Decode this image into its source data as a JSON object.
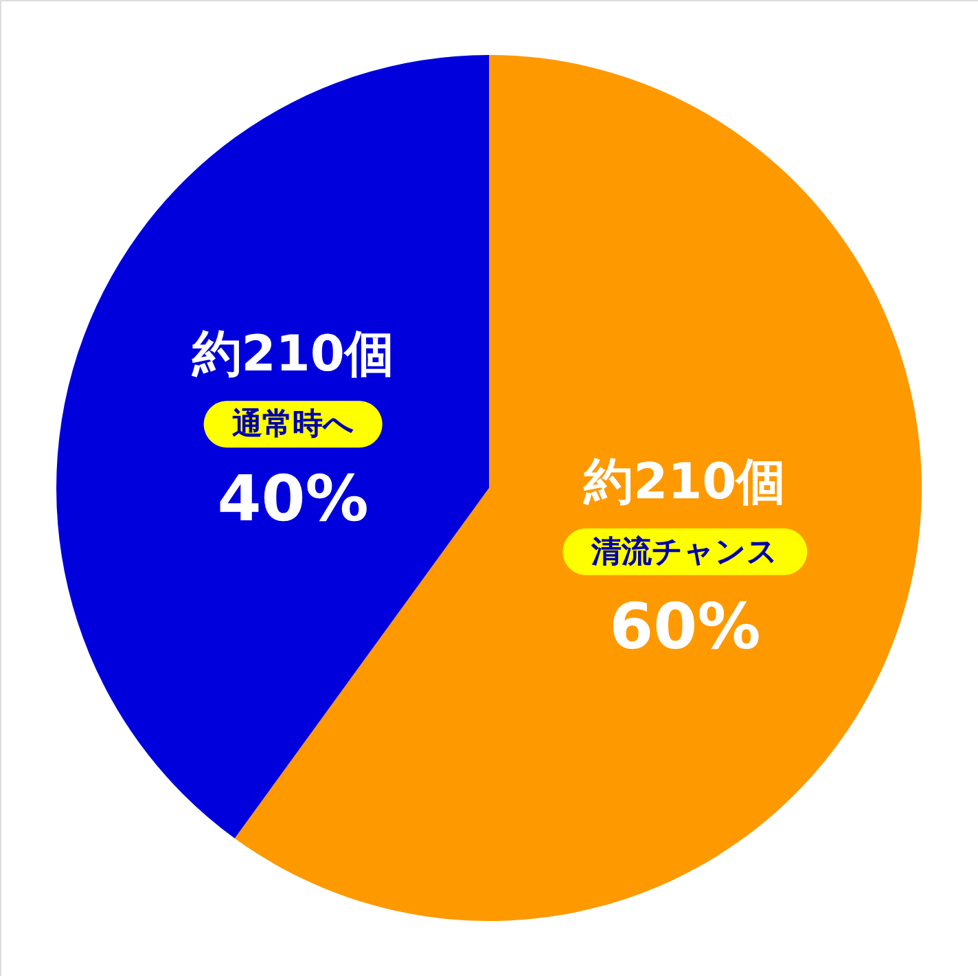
{
  "chart_data": {
    "type": "pie",
    "categories": [
      "清流チャンス",
      "通常時へ"
    ],
    "values": [
      60,
      40
    ],
    "colors": [
      "#ff9900",
      "#0000dd"
    ],
    "value_labels": [
      "60%",
      "40%"
    ],
    "annotations": [
      {
        "text": "約210個",
        "x": "清流チャンス"
      },
      {
        "text": "約210個",
        "x": "通常時へ"
      }
    ]
  }
}
